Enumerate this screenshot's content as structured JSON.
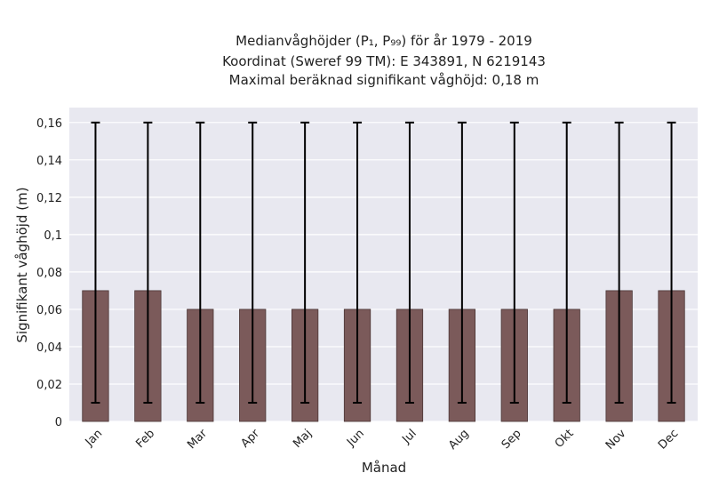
{
  "chart_data": {
    "type": "bar",
    "title_lines": [
      "Medianvåghöjder (P₁, P₉₉) för år 1979 - 2019",
      "Koordinat (Sweref 99 TM): E 343891, N 6219143",
      "Maximal beräknad signifikant våghöjd: 0,18 m"
    ],
    "xlabel": "Månad",
    "ylabel": "Signifikant våghöjd (m)",
    "categories": [
      "Jan",
      "Feb",
      "Mar",
      "Apr",
      "Maj",
      "Jun",
      "Jul",
      "Aug",
      "Sep",
      "Okt",
      "Nov",
      "Dec"
    ],
    "series": [
      {
        "values": [
          0.07,
          0.07,
          0.06,
          0.06,
          0.06,
          0.06,
          0.06,
          0.06,
          0.06,
          0.06,
          0.07,
          0.07
        ],
        "error_low": [
          0.01,
          0.01,
          0.01,
          0.01,
          0.01,
          0.01,
          0.01,
          0.01,
          0.01,
          0.01,
          0.01,
          0.01
        ],
        "error_high": [
          0.16,
          0.16,
          0.16,
          0.16,
          0.16,
          0.16,
          0.16,
          0.16,
          0.16,
          0.16,
          0.16,
          0.16
        ]
      }
    ],
    "ylim": [
      0,
      0.168
    ],
    "yticks": [
      0,
      0.02,
      0.04,
      0.06,
      0.08,
      0.1,
      0.12,
      0.14,
      0.16
    ],
    "ytick_labels": [
      "0",
      "0,02",
      "0,04",
      "0,06",
      "0,08",
      "0,1",
      "0,12",
      "0,14",
      "0,16"
    ],
    "grid": true,
    "colors": {
      "bar": "#7b5a5a",
      "bar_edge": "#4a3535",
      "errorbar": "#000000",
      "plot_background": "#e8e8f0",
      "grid": "#ffffff"
    }
  }
}
